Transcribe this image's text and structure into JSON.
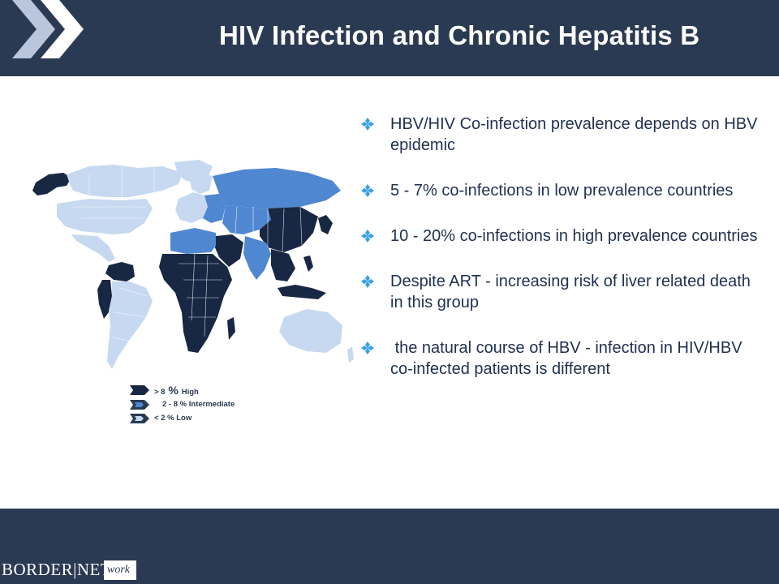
{
  "header": {
    "title": "HIV Infection and Chronic Hepatitis B"
  },
  "colors": {
    "header_bg": "#2a3a52",
    "high": "#182743",
    "intermediate": "#4f87d1",
    "low": "#c7d9f0",
    "bullet_icon": "#3aa0e3"
  },
  "map": {
    "legend": [
      {
        "pre": "> 8",
        "pct": " % ",
        "label": "High",
        "level": "high"
      },
      {
        "pre": "2 - 8",
        "pct": " % ",
        "label": "Intermediate",
        "level": "intermediate"
      },
      {
        "pre": "< 2",
        "pct": " % ",
        "label": "Low",
        "level": "low"
      }
    ]
  },
  "bullets": [
    {
      "icon": "diamond-bullet-icon",
      "text": "HBV/HIV Co-infection prevalence depends on HBV epidemic"
    },
    {
      "icon": "diamond-bullet-icon",
      "text": "5 - 7% co-infections in low prevalence countries"
    },
    {
      "icon": "diamond-bullet-icon",
      "text": "10 - 20% co-infections in high prevalence countries"
    },
    {
      "icon": "diamond-bullet-icon",
      "text": "Despite ART - increasing risk of liver related death in this group"
    },
    {
      "icon": "diamond-bullet-icon",
      "text": " the natural course of HBV - infection in HIV/HBV co-infected patients is different"
    }
  ],
  "footer": {
    "logo_main": "BORDER|NET",
    "logo_sub": "work"
  }
}
